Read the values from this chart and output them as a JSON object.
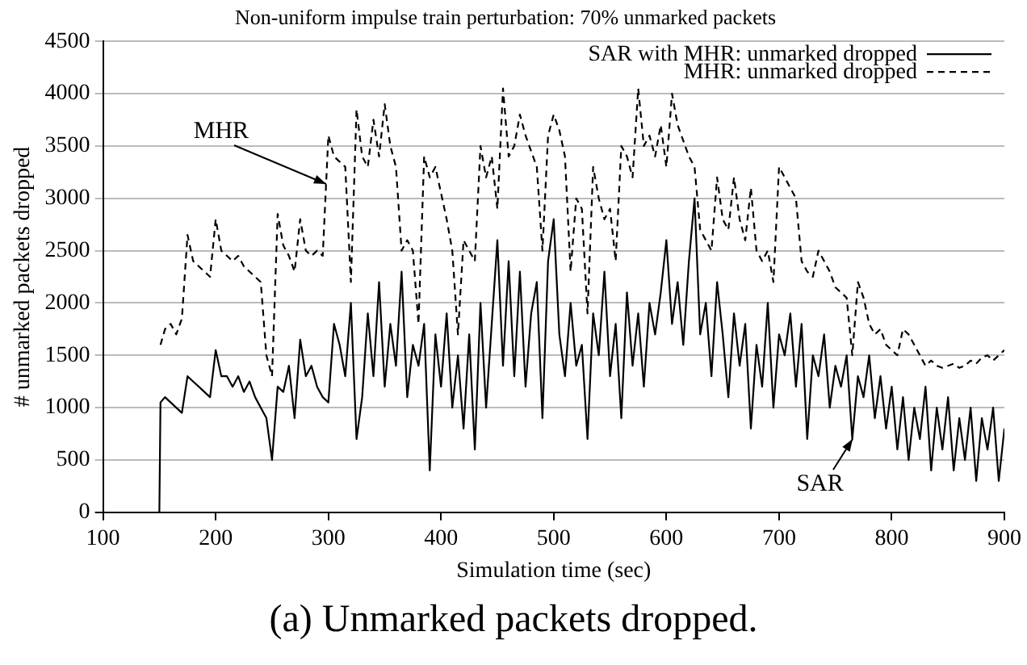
{
  "chart_data": {
    "type": "line",
    "title": "Non-uniform impulse train perturbation: 70% unmarked packets",
    "xlabel": "Simulation time (sec)",
    "ylabel": "# unmarked packets dropped",
    "x": [
      150,
      151,
      155,
      160,
      165,
      170,
      175,
      180,
      185,
      190,
      195,
      200,
      205,
      210,
      215,
      220,
      225,
      230,
      235,
      240,
      245,
      250,
      255,
      260,
      265,
      270,
      275,
      280,
      285,
      290,
      295,
      300,
      305,
      310,
      315,
      320,
      325,
      330,
      335,
      340,
      345,
      350,
      355,
      360,
      365,
      370,
      375,
      380,
      385,
      390,
      395,
      400,
      405,
      410,
      415,
      420,
      425,
      430,
      435,
      440,
      445,
      450,
      455,
      460,
      465,
      470,
      475,
      480,
      485,
      490,
      495,
      500,
      505,
      510,
      515,
      520,
      525,
      530,
      535,
      540,
      545,
      550,
      555,
      560,
      565,
      570,
      575,
      580,
      585,
      590,
      595,
      600,
      605,
      610,
      615,
      620,
      625,
      630,
      635,
      640,
      645,
      650,
      655,
      660,
      665,
      670,
      675,
      680,
      685,
      690,
      695,
      700,
      705,
      710,
      715,
      720,
      725,
      730,
      735,
      740,
      745,
      750,
      755,
      760,
      765,
      770,
      775,
      780,
      785,
      790,
      795,
      800,
      805,
      810,
      815,
      820,
      825,
      830,
      835,
      840,
      845,
      850,
      855,
      860,
      865,
      870,
      875,
      880,
      885,
      890,
      895,
      900
    ],
    "series": [
      {
        "name": "SAR with MHR: unmarked dropped",
        "color": "#000000",
        "line_style": "solid",
        "values": [
          0,
          1050,
          1100,
          1050,
          1000,
          950,
          1300,
          1250,
          1200,
          1150,
          1100,
          1550,
          1300,
          1300,
          1200,
          1300,
          1150,
          1250,
          1100,
          1000,
          900,
          500,
          1200,
          1150,
          1400,
          900,
          1650,
          1300,
          1400,
          1200,
          1100,
          1050,
          1800,
          1600,
          1300,
          2000,
          700,
          1100,
          1900,
          1300,
          2200,
          1200,
          1800,
          1400,
          2300,
          1100,
          1600,
          1400,
          1800,
          400,
          1700,
          1200,
          1900,
          1000,
          1500,
          800,
          1700,
          600,
          2000,
          1000,
          1800,
          2600,
          1400,
          2400,
          1300,
          2300,
          1200,
          1900,
          2200,
          900,
          2400,
          2800,
          1700,
          1300,
          2000,
          1400,
          1600,
          700,
          1900,
          1500,
          2300,
          1300,
          1800,
          900,
          2100,
          1400,
          1900,
          1200,
          2000,
          1700,
          2100,
          2600,
          1800,
          2200,
          1600,
          2400,
          3000,
          1700,
          2000,
          1300,
          2200,
          1700,
          1100,
          1900,
          1400,
          1800,
          800,
          1600,
          1200,
          2000,
          1000,
          1700,
          1500,
          1900,
          1200,
          1800,
          700,
          1500,
          1300,
          1700,
          1000,
          1400,
          1200,
          1500,
          700,
          1300,
          1100,
          1500,
          900,
          1300,
          800,
          1200,
          600,
          1100,
          500,
          1000,
          700,
          1200,
          400,
          1000,
          600,
          1100,
          400,
          900,
          500,
          1000,
          300,
          900,
          600,
          1000,
          300,
          800
        ]
      },
      {
        "name": "MHR: unmarked dropped",
        "color": "#000000",
        "line_style": "dashed",
        "values": [
          null,
          1600,
          1750,
          1800,
          1700,
          1850,
          2650,
          2400,
          2350,
          2300,
          2250,
          2800,
          2500,
          2450,
          2400,
          2450,
          2350,
          2300,
          2250,
          2200,
          1500,
          1300,
          2850,
          2550,
          2450,
          2300,
          2800,
          2500,
          2450,
          2500,
          2450,
          3600,
          3400,
          3350,
          3300,
          2200,
          3850,
          3400,
          3300,
          3750,
          3400,
          3900,
          3500,
          3300,
          2500,
          2600,
          2500,
          1800,
          3400,
          3200,
          3300,
          3050,
          2800,
          2500,
          1700,
          2600,
          2500,
          2400,
          3500,
          3200,
          3400,
          2900,
          4050,
          3400,
          3500,
          3800,
          3600,
          3450,
          3300,
          2500,
          3600,
          3800,
          3650,
          3400,
          2300,
          3000,
          2900,
          1900,
          3300,
          3000,
          2800,
          2900,
          2400,
          3500,
          3400,
          3200,
          4050,
          3500,
          3600,
          3400,
          3700,
          3300,
          4000,
          3700,
          3550,
          3400,
          3300,
          2700,
          2600,
          2500,
          3200,
          2800,
          2700,
          3200,
          2800,
          2600,
          3100,
          2500,
          2400,
          2500,
          2200,
          3300,
          3200,
          3100,
          3000,
          2400,
          2300,
          2250,
          2500,
          2400,
          2300,
          2150,
          2100,
          2050,
          1500,
          2200,
          2050,
          1800,
          1700,
          1750,
          1600,
          1550,
          1500,
          1750,
          1700,
          1600,
          1500,
          1400,
          1450,
          1400,
          1380,
          1400,
          1420,
          1380,
          1400,
          1450,
          1420,
          1480,
          1500,
          1450,
          1500,
          1550
        ]
      }
    ],
    "xlim": [
      100,
      900
    ],
    "xticks": [
      100,
      200,
      300,
      400,
      500,
      600,
      700,
      800,
      900
    ],
    "ylim": [
      0,
      4500
    ],
    "yticks": [
      0,
      500,
      1000,
      1500,
      2000,
      2500,
      3000,
      3500,
      4000,
      4500
    ],
    "grid": "y",
    "legend": "top right",
    "marker": "none",
    "annotations": [
      {
        "text": "MHR",
        "x": 298,
        "y": 3140
      },
      {
        "text": "SAR",
        "x": 765,
        "y": 700
      },
      "(a) Unmarked packets dropped."
    ]
  }
}
